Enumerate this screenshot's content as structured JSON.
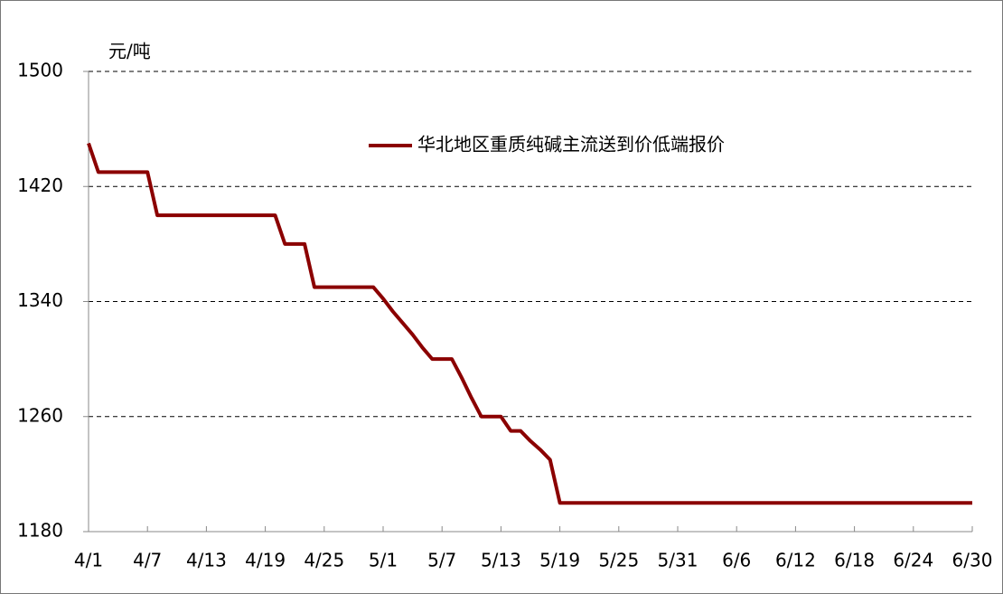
{
  "chart_data": {
    "type": "line",
    "y_label": "元/吨",
    "categories": [
      "4/1",
      null,
      null,
      null,
      null,
      null,
      "4/7",
      null,
      null,
      null,
      null,
      null,
      "4/13",
      null,
      null,
      null,
      null,
      null,
      "4/19",
      null,
      null,
      null,
      null,
      null,
      "4/25",
      null,
      null,
      null,
      null,
      null,
      "5/1",
      null,
      null,
      null,
      null,
      null,
      "5/7",
      null,
      null,
      null,
      null,
      null,
      "5/13",
      null,
      null,
      null,
      null,
      null,
      "5/19",
      null,
      null,
      null,
      null,
      null,
      "5/25",
      null,
      null,
      null,
      null,
      null,
      "5/31",
      null,
      null,
      null,
      null,
      null,
      "6/6",
      null,
      null,
      null,
      null,
      null,
      "6/12",
      null,
      null,
      null,
      null,
      null,
      "6/18",
      null,
      null,
      null,
      null,
      null,
      "6/24",
      null,
      null,
      null,
      null,
      null,
      "6/30"
    ],
    "series": [
      {
        "name": "华北地区重质纯碱主流送到价低端报价",
        "color": "#8b0000",
        "values": [
          1450,
          1430,
          1430,
          1430,
          1430,
          1430,
          1430,
          1400,
          1400,
          1400,
          1400,
          1400,
          1400,
          1400,
          1400,
          1400,
          1400,
          1400,
          1400,
          1400,
          1380,
          1380,
          1380,
          1350,
          1350,
          1350,
          1350,
          1350,
          1350,
          1350,
          1342,
          1333,
          1325,
          1317,
          1308,
          1300,
          1300,
          1300,
          1287,
          1273,
          1260,
          1260,
          1260,
          1250,
          1250,
          1243,
          1237,
          1230,
          1200,
          1200,
          1200,
          1200,
          1200,
          1200,
          1200,
          1200,
          1200,
          1200,
          1200,
          1200,
          1200,
          1200,
          1200,
          1200,
          1200,
          1200,
          1200,
          1200,
          1200,
          1200,
          1200,
          1200,
          1200,
          1200,
          1200,
          1200,
          1200,
          1200,
          1200,
          1200,
          1200,
          1200,
          1200,
          1200,
          1200,
          1200,
          1200,
          1200,
          1200,
          1200,
          1200
        ]
      }
    ],
    "ylim": [
      1180,
      1500
    ],
    "yticks": [
      1180,
      1260,
      1340,
      1420,
      1500
    ],
    "grid": true,
    "legend": "top-right"
  }
}
